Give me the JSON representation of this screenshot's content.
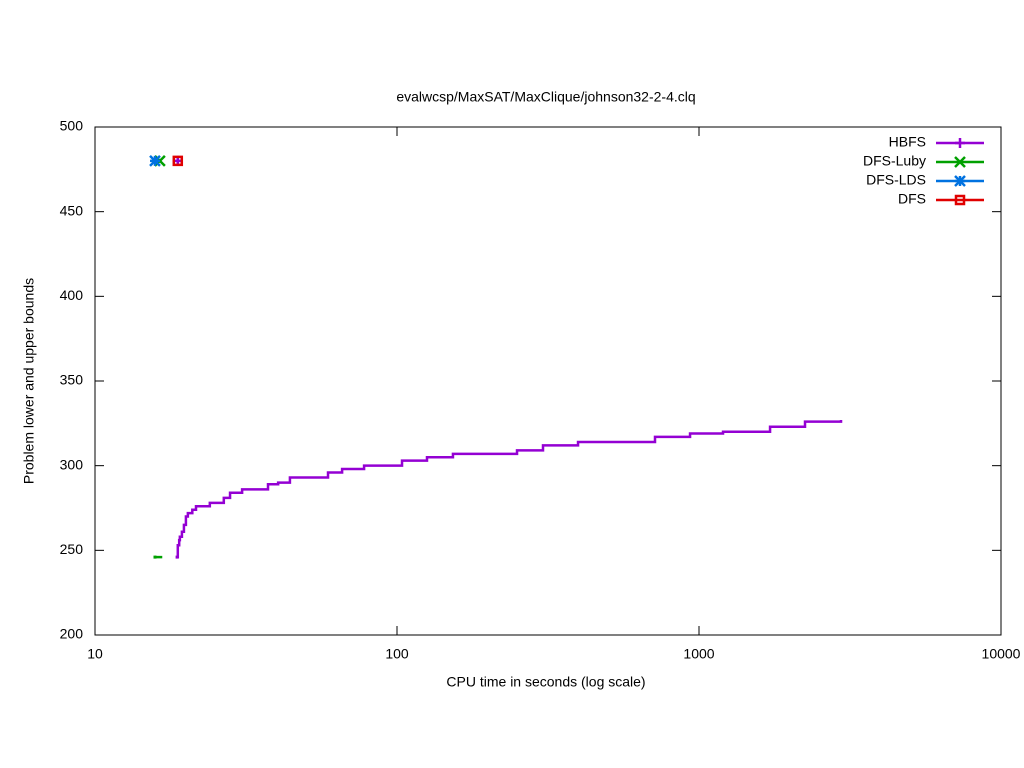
{
  "chart_data": {
    "type": "step",
    "title": "evalwcsp/MaxSAT/MaxClique/johnson32-2-4.clq",
    "xlabel": "CPU time in seconds (log scale)",
    "ylabel": "Problem lower and upper bounds",
    "xscale": "log",
    "xlim": [
      10,
      10000
    ],
    "xticks": [
      10,
      100,
      1000,
      10000
    ],
    "ylim": [
      200,
      500
    ],
    "yticks": [
      200,
      250,
      300,
      350,
      400,
      450,
      500
    ],
    "legend": "top-right",
    "series": [
      {
        "name": "HBFS",
        "color": "#9400d3",
        "marker": "plus",
        "x": [
          18.7,
          18.8,
          19.0,
          19.1,
          19.4,
          19.7,
          20.0,
          20.3,
          21.0,
          21.6,
          24.0,
          26.7,
          28.0,
          30.7,
          37.4,
          40.4,
          44.2,
          59.1,
          65.8,
          77.8,
          103.9,
          125.7,
          153.2,
          249.7,
          304.4,
          397.6,
          715,
          934,
          1201,
          1719,
          2244,
          2953
        ],
        "values": [
          246,
          253,
          256,
          258,
          261,
          265,
          270,
          272,
          274,
          276,
          278,
          281,
          284,
          286,
          289,
          290,
          293,
          296,
          298,
          300,
          303,
          305,
          307,
          309,
          312,
          314,
          317,
          319,
          320,
          323,
          326,
          327
        ],
        "upper_x": [
          18.8
        ],
        "upper_values": [
          480
        ]
      },
      {
        "name": "DFS-Luby",
        "color": "#00a000",
        "marker": "cross",
        "x": [
          15.8,
          16.7
        ],
        "values": [
          246,
          246
        ],
        "upper_x": [
          16.4
        ],
        "upper_values": [
          480
        ]
      },
      {
        "name": "DFS-LDS",
        "color": "#0072e0",
        "marker": "star",
        "x": [],
        "values": [],
        "upper_x": [
          15.8
        ],
        "upper_values": [
          480
        ]
      },
      {
        "name": "DFS",
        "color": "#e00000",
        "marker": "square",
        "x": [],
        "values": [],
        "upper_x": [
          18.8
        ],
        "upper_values": [
          480
        ]
      }
    ]
  }
}
